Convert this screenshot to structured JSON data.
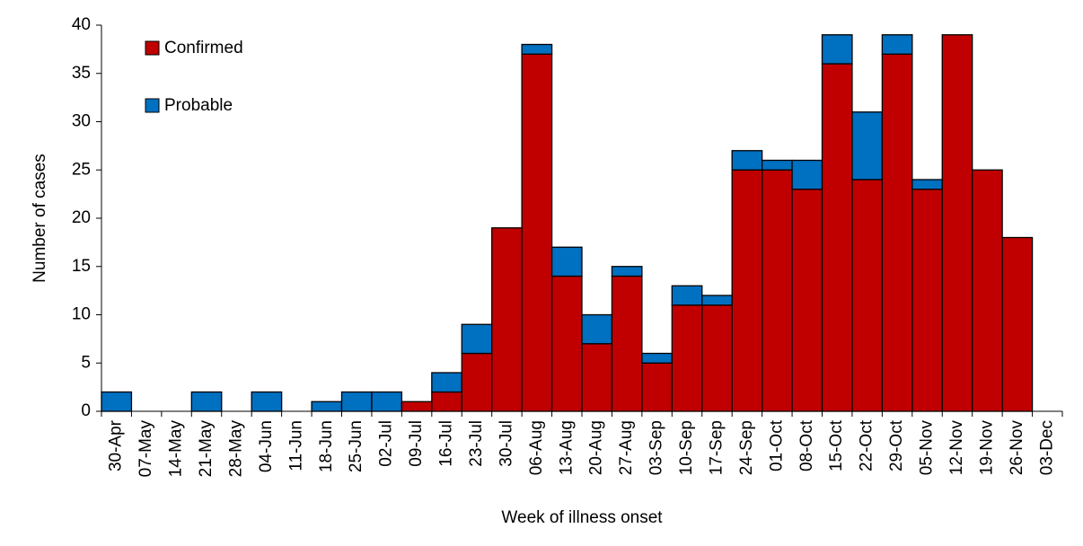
{
  "chart_data": {
    "type": "stacked_bar",
    "x_label": "Week of illness onset",
    "y_label": "Number of cases",
    "categories": [
      "30-Apr",
      "07-May",
      "14-May",
      "21-May",
      "28-May",
      "04-Jun",
      "11-Jun",
      "18-Jun",
      "25-Jun",
      "02-Jul",
      "09-Jul",
      "16-Jul",
      "23-Jul",
      "30-Jul",
      "06-Aug",
      "13-Aug",
      "20-Aug",
      "27-Aug",
      "03-Sep",
      "10-Sep",
      "17-Sep",
      "24-Sep",
      "01-Oct",
      "08-Oct",
      "15-Oct",
      "22-Oct",
      "29-Oct",
      "05-Nov",
      "12-Nov",
      "19-Nov",
      "26-Nov",
      "03-Dec"
    ],
    "series": [
      {
        "name": "Confirmed",
        "color": "#c00000",
        "values": [
          0,
          0,
          0,
          0,
          0,
          0,
          0,
          0,
          0,
          0,
          1,
          2,
          6,
          19,
          37,
          14,
          7,
          14,
          5,
          11,
          11,
          25,
          25,
          23,
          36,
          24,
          37,
          23,
          39,
          25,
          18,
          0
        ]
      },
      {
        "name": "Probable",
        "color": "#0070c0",
        "values": [
          2,
          0,
          0,
          2,
          0,
          2,
          0,
          1,
          2,
          2,
          0,
          2,
          3,
          0,
          1,
          3,
          3,
          1,
          1,
          2,
          1,
          2,
          1,
          3,
          3,
          7,
          2,
          1,
          0,
          0,
          0,
          0
        ]
      }
    ],
    "ylim": [
      0,
      40
    ],
    "yticks": [
      0,
      5,
      10,
      15,
      20,
      25,
      30,
      35,
      40
    ],
    "legend": "upper left"
  }
}
